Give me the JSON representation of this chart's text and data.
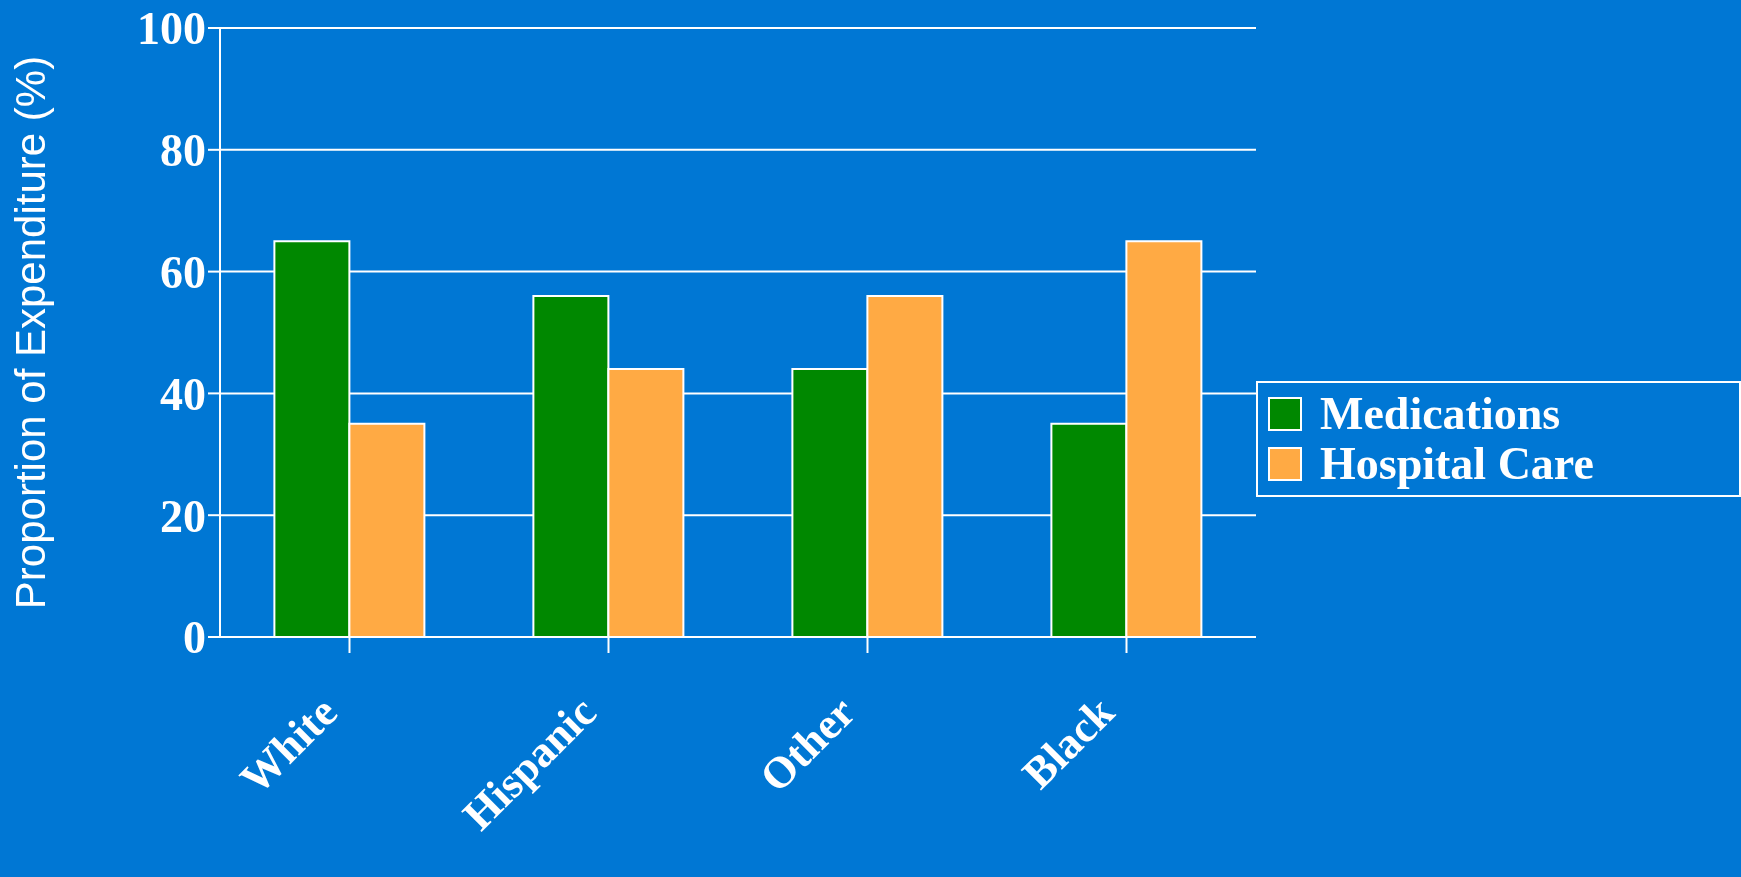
{
  "chart_data": {
    "type": "bar",
    "ylabel": "Proportion of Expenditure (%)",
    "categories": [
      "White",
      "Hispanic",
      "Other",
      "Black"
    ],
    "series": [
      {
        "name": "Medications",
        "color": "#008800",
        "values": [
          65,
          56,
          44,
          35
        ]
      },
      {
        "name": "Hospital Care",
        "color": "#ffaa44",
        "values": [
          35,
          44,
          56,
          65
        ]
      }
    ],
    "ylim": [
      0,
      100
    ],
    "yticks": [
      0,
      20,
      40,
      60,
      80,
      100
    ],
    "grid": "y",
    "legend": "right"
  }
}
